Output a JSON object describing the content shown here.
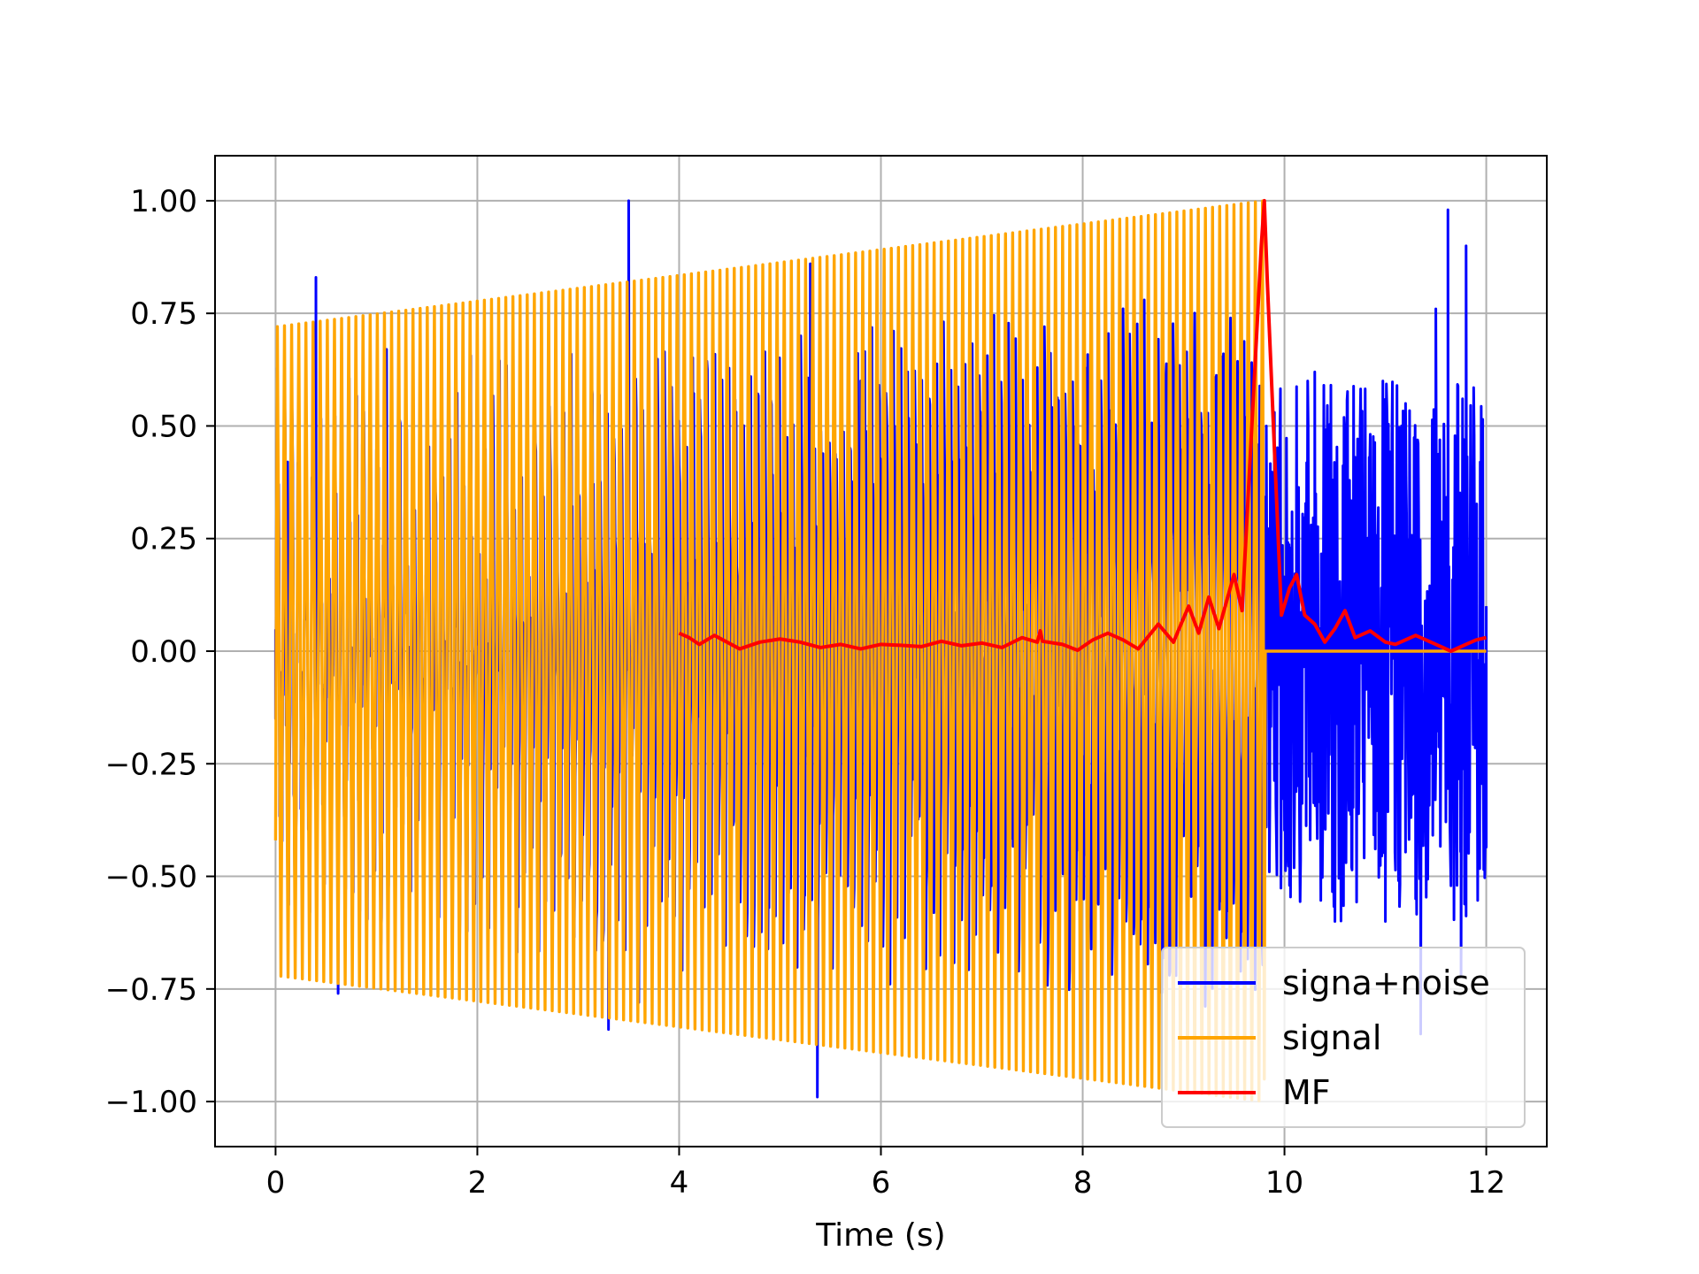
{
  "chart_data": {
    "type": "line",
    "title": "",
    "xlabel": "Time (s)",
    "ylabel": "",
    "xlim": [
      -0.6,
      12.6
    ],
    "ylim": [
      -1.1,
      1.1
    ],
    "grid": true,
    "legend_position": "lower-right",
    "x_ticks": [
      0,
      2,
      4,
      6,
      8,
      10,
      12
    ],
    "x_tick_labels": [
      "0",
      "2",
      "4",
      "6",
      "8",
      "10",
      "12"
    ],
    "y_ticks": [
      1.0,
      0.75,
      0.5,
      0.25,
      0.0,
      -0.25,
      -0.5,
      -0.75,
      -1.0
    ],
    "y_tick_labels": [
      "1.00",
      "0.75",
      "0.50",
      "0.25",
      "0.00",
      "−0.25",
      "−0.50",
      "−0.75",
      "−1.00"
    ],
    "series": [
      {
        "name": "signa+noise",
        "color": "#0000ff",
        "note_x_range": [
          0,
          12
        ],
        "points": [
          [
            0,
            -0.15
          ],
          [
            0.12,
            0.42
          ],
          [
            0.25,
            -0.35
          ],
          [
            0.4,
            0.83
          ],
          [
            0.5,
            -0.2
          ],
          [
            0.62,
            -0.76
          ],
          [
            1.1,
            0.67
          ],
          [
            1.4,
            -0.6
          ],
          [
            3.3,
            -0.84
          ],
          [
            3.5,
            1.0
          ],
          [
            3.6,
            -0.78
          ],
          [
            5.3,
            0.86
          ],
          [
            5.37,
            -0.99
          ],
          [
            5.8,
            0.6
          ],
          [
            8.3,
            0.5
          ],
          [
            9.82,
            0.5
          ],
          [
            9.85,
            -0.49
          ],
          [
            9.9,
            0.53
          ],
          [
            10.05,
            -0.52
          ],
          [
            10.3,
            0.62
          ],
          [
            10.5,
            -0.6
          ],
          [
            10.6,
            0.5
          ],
          [
            11.0,
            -0.6
          ],
          [
            11.2,
            0.55
          ],
          [
            11.35,
            -0.85
          ],
          [
            11.5,
            0.76
          ],
          [
            11.62,
            0.98
          ],
          [
            11.75,
            -0.72
          ],
          [
            11.8,
            0.9
          ],
          [
            12.0,
            0.1
          ]
        ]
      },
      {
        "name": "signal",
        "color": "#ffa500",
        "t_start": 0,
        "t_end": 9.8,
        "amplitude_start": 0.72,
        "amplitude_end": 1.0,
        "cycles": 138,
        "value_after_end": 0.0,
        "points": [
          [
            0,
            -0.42
          ],
          [
            0.02,
            0.72
          ],
          [
            9.79,
            1.0
          ],
          [
            9.8,
            -1.0
          ],
          [
            9.81,
            0.0
          ],
          [
            12.0,
            0.0
          ]
        ]
      },
      {
        "name": "MF",
        "color": "#ff0000",
        "points": [
          [
            4.0,
            0.04
          ],
          [
            4.1,
            0.03
          ],
          [
            4.2,
            0.015
          ],
          [
            4.35,
            0.035
          ],
          [
            4.6,
            0.005
          ],
          [
            4.8,
            0.02
          ],
          [
            5.0,
            0.027
          ],
          [
            5.2,
            0.02
          ],
          [
            5.4,
            0.008
          ],
          [
            5.6,
            0.015
          ],
          [
            5.8,
            0.005
          ],
          [
            6.0,
            0.015
          ],
          [
            6.2,
            0.013
          ],
          [
            6.4,
            0.01
          ],
          [
            6.6,
            0.022
          ],
          [
            6.8,
            0.012
          ],
          [
            7.0,
            0.018
          ],
          [
            7.2,
            0.008
          ],
          [
            7.4,
            0.03
          ],
          [
            7.55,
            0.02
          ],
          [
            7.58,
            0.045
          ],
          [
            7.6,
            0.022
          ],
          [
            7.8,
            0.015
          ],
          [
            7.95,
            0.002
          ],
          [
            8.1,
            0.025
          ],
          [
            8.25,
            0.04
          ],
          [
            8.4,
            0.025
          ],
          [
            8.55,
            0.005
          ],
          [
            8.75,
            0.06
          ],
          [
            8.9,
            0.02
          ],
          [
            9.05,
            0.1
          ],
          [
            9.15,
            0.04
          ],
          [
            9.25,
            0.12
          ],
          [
            9.35,
            0.05
          ],
          [
            9.5,
            0.17
          ],
          [
            9.58,
            0.09
          ],
          [
            9.7,
            0.6
          ],
          [
            9.77,
            0.9
          ],
          [
            9.8,
            1.0
          ],
          [
            9.83,
            0.82
          ],
          [
            9.9,
            0.45
          ],
          [
            9.97,
            0.08
          ],
          [
            10.05,
            0.14
          ],
          [
            10.12,
            0.17
          ],
          [
            10.2,
            0.08
          ],
          [
            10.3,
            0.06
          ],
          [
            10.4,
            0.02
          ],
          [
            10.5,
            0.05
          ],
          [
            10.6,
            0.09
          ],
          [
            10.7,
            0.03
          ],
          [
            10.85,
            0.045
          ],
          [
            11.0,
            0.02
          ],
          [
            11.1,
            0.015
          ],
          [
            11.3,
            0.035
          ],
          [
            11.5,
            0.015
          ],
          [
            11.65,
            0.0
          ],
          [
            11.8,
            0.015
          ],
          [
            11.9,
            0.025
          ],
          [
            12.0,
            0.03
          ]
        ]
      }
    ]
  }
}
